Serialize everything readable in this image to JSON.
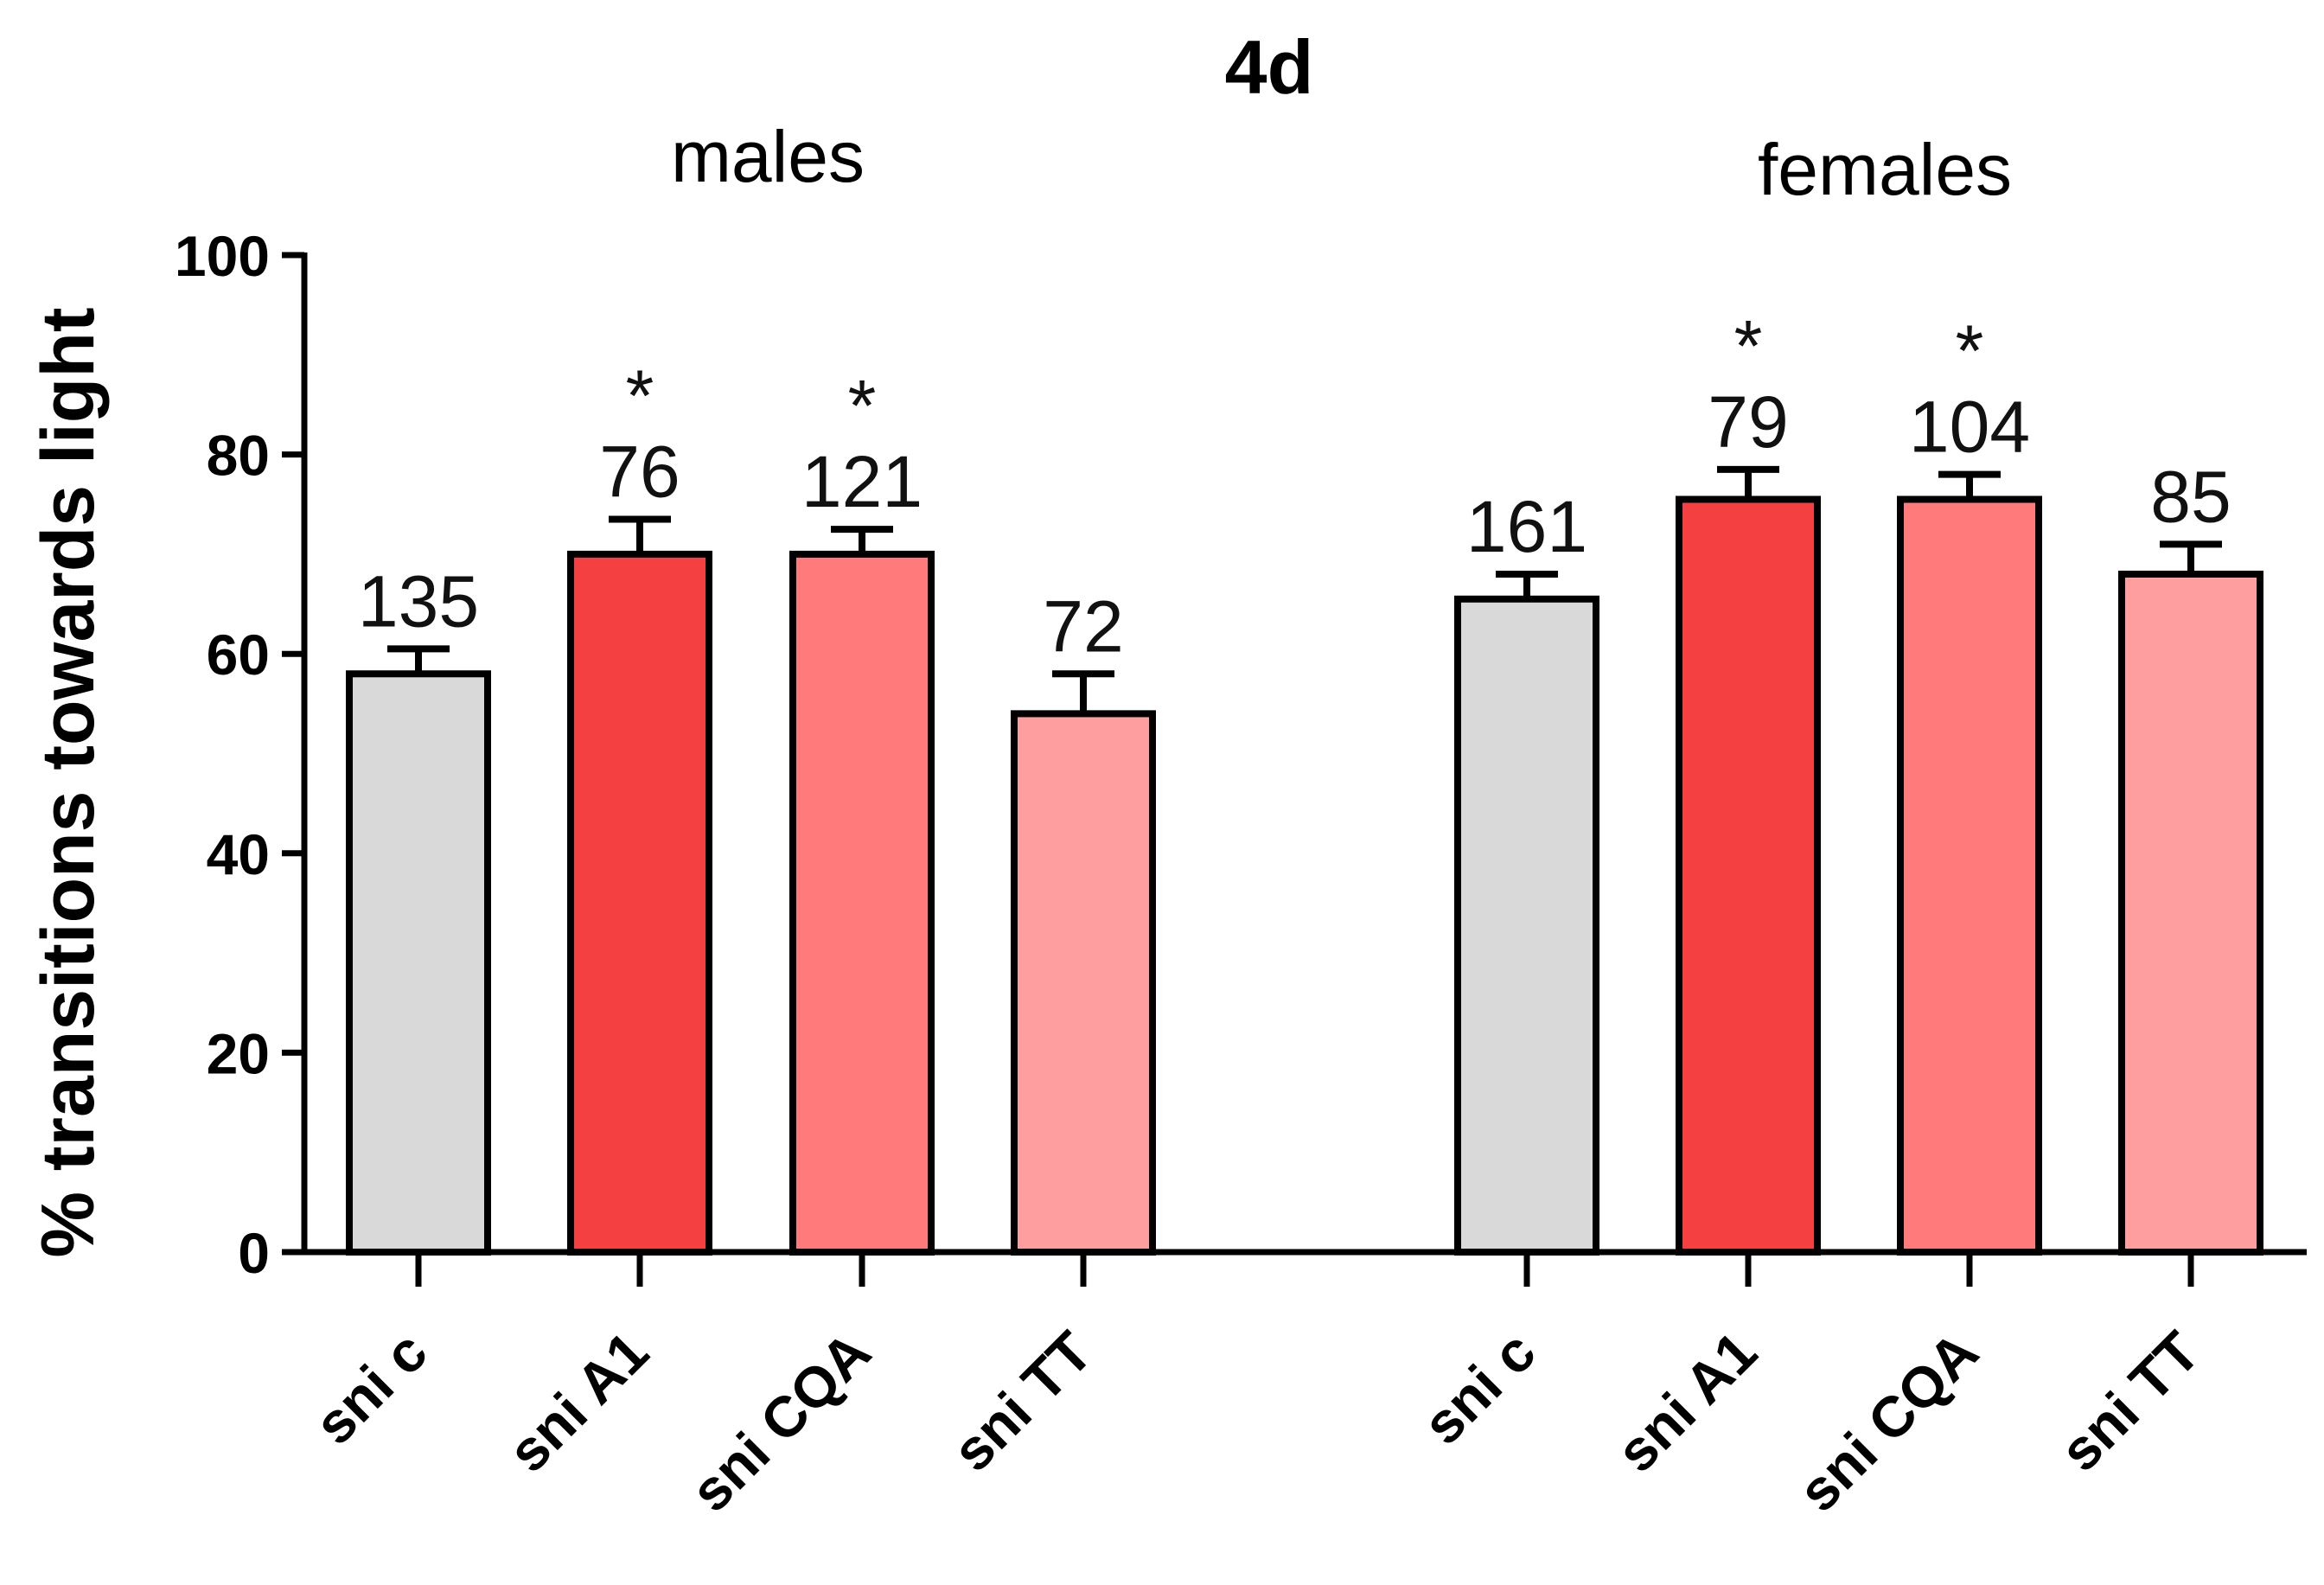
{
  "chart_data": {
    "type": "bar",
    "title": "4d",
    "ylabel": "% transitions towards light",
    "xlabel": "",
    "ylim": [
      0,
      100
    ],
    "yticks": [
      0,
      20,
      40,
      60,
      80,
      100
    ],
    "grid": false,
    "groups": [
      {
        "label": "males",
        "bars": [
          {
            "category": "sni c",
            "value": 58,
            "error": 2.5,
            "n_label": "135",
            "significance": "",
            "color": "#d9d9d9"
          },
          {
            "category": "sni A1",
            "value": 70,
            "error": 3.5,
            "n_label": "76",
            "significance": "*",
            "color": "#f44040"
          },
          {
            "category": "sni CQA",
            "value": 70,
            "error": 2.5,
            "n_label": "121",
            "significance": "*",
            "color": "#ff7b7b"
          },
          {
            "category": "sni TT",
            "value": 54,
            "error": 4.0,
            "n_label": "72",
            "significance": "",
            "color": "#ff9e9e"
          }
        ]
      },
      {
        "label": "females",
        "bars": [
          {
            "category": "sni c",
            "value": 65.5,
            "error": 2.5,
            "n_label": "161",
            "significance": "",
            "color": "#d9d9d9"
          },
          {
            "category": "sni A1",
            "value": 75.5,
            "error": 3.0,
            "n_label": "79",
            "significance": "*",
            "color": "#f44040"
          },
          {
            "category": "sni CQA",
            "value": 75.5,
            "error": 2.5,
            "n_label": "104",
            "significance": "*",
            "color": "#ff7b7b"
          },
          {
            "category": "sni TT",
            "value": 68,
            "error": 3.0,
            "n_label": "85",
            "significance": "",
            "color": "#ff9e9e"
          }
        ]
      }
    ]
  }
}
